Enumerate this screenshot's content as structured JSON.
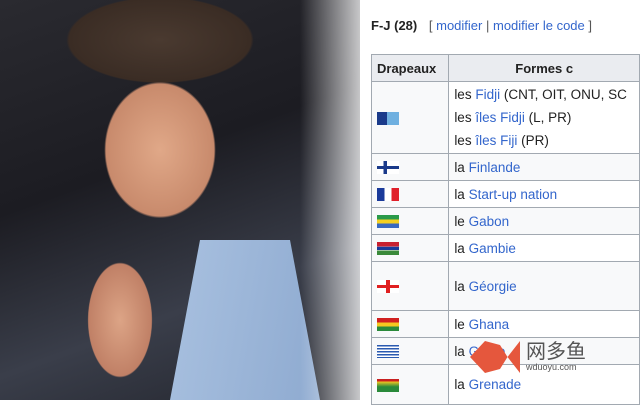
{
  "section": {
    "title": "F-J (28)",
    "edit_open": "[",
    "modifier": "modifier",
    "sep": "|",
    "modifier_code": "modifier le code",
    "edit_close": "]"
  },
  "table": {
    "headers": [
      "Drapeaux",
      "Formes c"
    ],
    "rows": [
      {
        "flag": "fiji-flag",
        "lines": [
          {
            "art": "les",
            "name": "Fidji",
            "note": "(CNT, OIT, ONU, SC"
          },
          {
            "art": "les",
            "name": "îles Fidji",
            "note": "(L, PR)"
          },
          {
            "art": "les",
            "name": "îles Fiji",
            "note": "(PR)"
          }
        ]
      },
      {
        "flag": "finland-flag",
        "lines": [
          {
            "art": "la",
            "name": "Finlande",
            "note": ""
          }
        ]
      },
      {
        "flag": "france-flag",
        "lines": [
          {
            "art": "la",
            "name": "Start-up nation",
            "note": ""
          }
        ]
      },
      {
        "flag": "gabon-flag",
        "lines": [
          {
            "art": "le",
            "name": "Gabon",
            "note": ""
          }
        ]
      },
      {
        "flag": "gambia-flag",
        "lines": [
          {
            "art": "la",
            "name": "Gambie",
            "note": ""
          }
        ]
      },
      {
        "flag": "georgia-flag",
        "lines": [
          {
            "art": "la",
            "name": "Géorgie",
            "note": ""
          }
        ]
      },
      {
        "flag": "ghana-flag",
        "lines": [
          {
            "art": "le",
            "name": "Ghana",
            "note": ""
          }
        ]
      },
      {
        "flag": "greece-flag",
        "lines": [
          {
            "art": "la",
            "name": "Grèce",
            "note": ""
          }
        ]
      },
      {
        "flag": "grenada-flag",
        "lines": [
          {
            "art": "la",
            "name": "Grenade",
            "note": ""
          }
        ]
      }
    ]
  },
  "watermark": {
    "name": "网多鱼",
    "url": "wduoyu.com"
  },
  "colors": {
    "link": "#3366cc",
    "header_bg": "#eaecf0",
    "border": "#a2a9b1",
    "watermark": "#e5573d"
  }
}
